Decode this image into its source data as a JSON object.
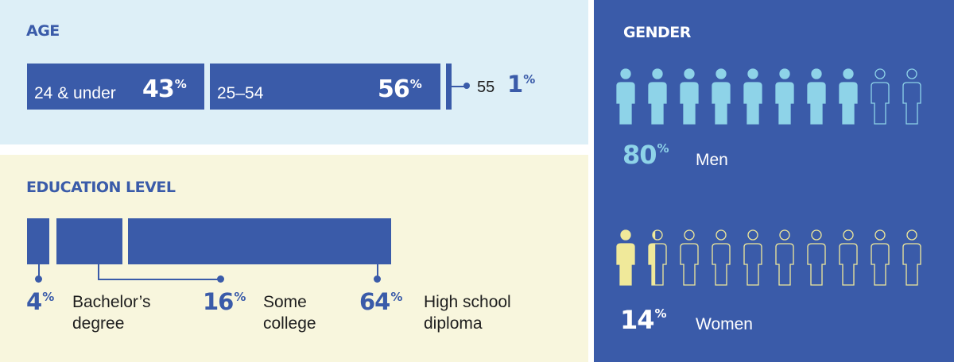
{
  "age": {
    "title": "AGE",
    "segments": [
      {
        "label": "24 & under",
        "value": "43",
        "pct": "%"
      },
      {
        "label": "25–54",
        "value": "56",
        "pct": "%"
      },
      {
        "label": "55",
        "value": "1",
        "pct": "%"
      }
    ]
  },
  "education": {
    "title": "EDUCATION LEVEL",
    "segments": [
      {
        "value": "4",
        "pct": "%",
        "label_line1": "Bachelor’s",
        "label_line2": "degree"
      },
      {
        "value": "16",
        "pct": "%",
        "label_line1": "Some",
        "label_line2": "college"
      },
      {
        "value": "64",
        "pct": "%",
        "label_line1": "High school",
        "label_line2": "diploma"
      }
    ]
  },
  "gender": {
    "title": "GENDER",
    "men": {
      "value": "80",
      "pct": "%",
      "label": "Men",
      "icons_filled": 8,
      "icons_total": 10
    },
    "women": {
      "value": "14",
      "pct": "%",
      "label": "Women",
      "icons_filled": 1.4,
      "icons_total": 10
    }
  },
  "colors": {
    "primary_blue": "#3a5ba9",
    "age_bg": "#ddeff7",
    "edu_bg": "#f8f6dd",
    "men_icon": "#8ed3e8",
    "women_icon": "#f0e99a"
  },
  "chart_data": [
    {
      "type": "bar",
      "title": "AGE",
      "orientation": "horizontal-stacked",
      "categories": [
        "24 & under",
        "25–54",
        "55"
      ],
      "values": [
        43,
        56,
        1
      ],
      "unit": "%"
    },
    {
      "type": "bar",
      "title": "EDUCATION LEVEL",
      "orientation": "horizontal-stacked",
      "categories": [
        "Bachelor’s degree",
        "Some college",
        "High school diploma"
      ],
      "values": [
        4,
        16,
        64
      ],
      "unit": "%"
    },
    {
      "type": "pictogram",
      "title": "GENDER",
      "categories": [
        "Men",
        "Women"
      ],
      "values": [
        80,
        14
      ],
      "unit": "%",
      "icons_per_row": 10
    }
  ]
}
